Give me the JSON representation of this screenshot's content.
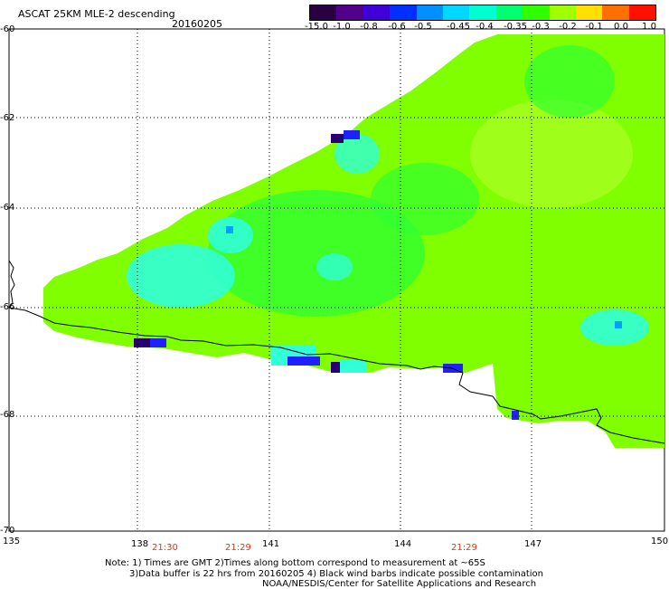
{
  "title": "ASCAT 25KM MLE-2 descending",
  "date": "20160205",
  "colorbar": {
    "labels": [
      "-15.0",
      "-1.0",
      "-0.8",
      "-0.6",
      "-0.5",
      "-0.45",
      "-0.4",
      "-0.35",
      "-0.3",
      "-0.2",
      "-0.1",
      "0.0",
      "1.0"
    ],
    "colors": [
      "#2a0040",
      "#50008a",
      "#4000d8",
      "#0030ff",
      "#0090ff",
      "#00d8ff",
      "#00ffd0",
      "#00ff70",
      "#30ff00",
      "#a0ff00",
      "#ffe000",
      "#ff7000",
      "#ff1000"
    ]
  },
  "map": {
    "lat_labels": [
      "-60",
      "-62",
      "-64",
      "-66",
      "-68",
      "-70"
    ],
    "lon_labels": [
      "135",
      "138",
      "141",
      "144",
      "147",
      "150"
    ],
    "time_labels": [
      "21:30",
      "21:29",
      "21:29"
    ],
    "field_colors": {
      "dominant": "#80ff00",
      "light": "#a8ff20",
      "mid": "#30ff30",
      "cyan": "#30ffd8",
      "blue": "#2020ff",
      "navy": "#2a0070"
    }
  },
  "notes": [
    "Note: 1) Times are GMT 2)Times along bottom correspond to measurement at ~65S",
    "3)Data buffer is 22 hrs from 20160205 4) Black wind barbs indicate possible contamination",
    "NOAA/NESDIS/Center for Satellite Applications and Research"
  ]
}
